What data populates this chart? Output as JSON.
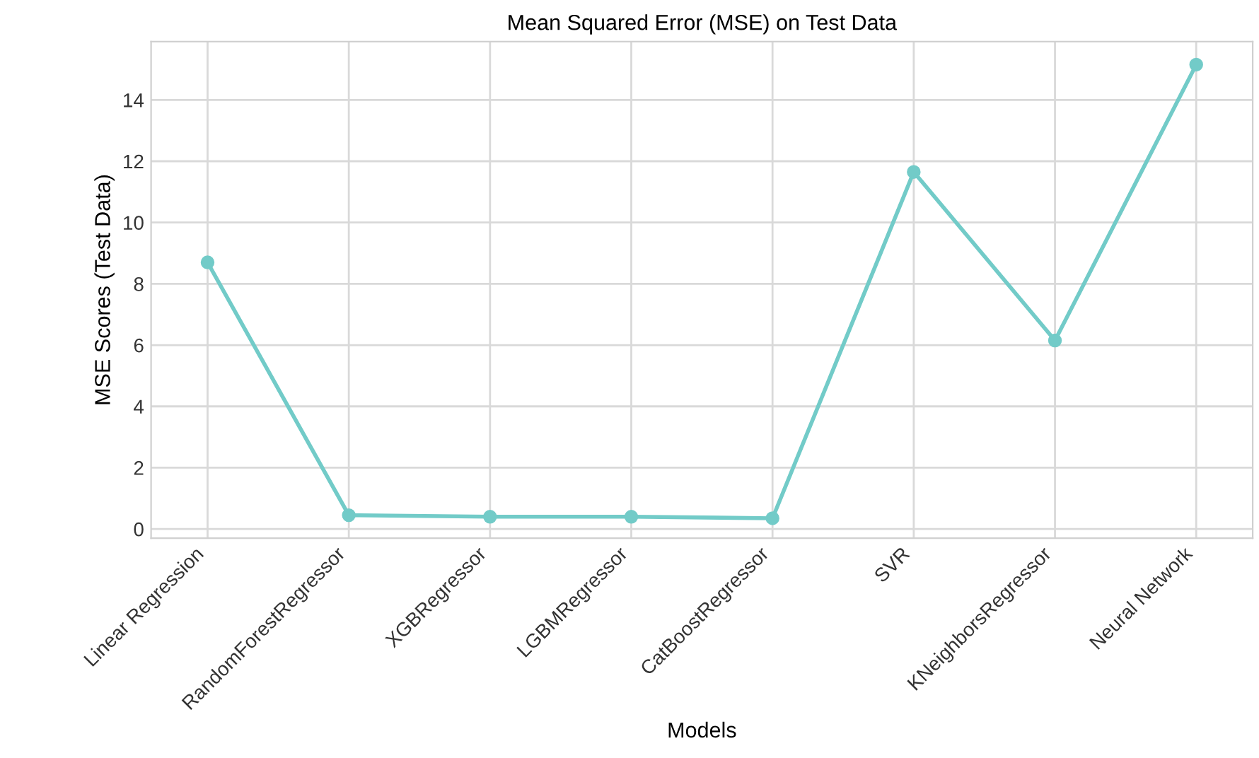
{
  "chart_data": {
    "type": "line",
    "title": "Mean Squared Error (MSE) on Test Data",
    "xlabel": "Models",
    "ylabel": "MSE Scores (Test Data)",
    "categories": [
      "Linear Regression",
      "RandomForestRegressor",
      "XGBRegressor",
      "LGBMRegressor",
      "CatBoostRegressor",
      "SVR",
      "KNeighborsRegressor",
      "Neural Network"
    ],
    "series": [
      {
        "color": "#72cbc8",
        "values": [
          8.7,
          0.45,
          0.4,
          0.4,
          0.35,
          11.65,
          6.15,
          15.15
        ]
      }
    ],
    "ylim": [
      -0.3,
      15.9
    ],
    "yticks": [
      0,
      2,
      4,
      6,
      8,
      10,
      12,
      14
    ],
    "grid": true,
    "marker": "circle",
    "line_style": "solid",
    "legend": false
  }
}
